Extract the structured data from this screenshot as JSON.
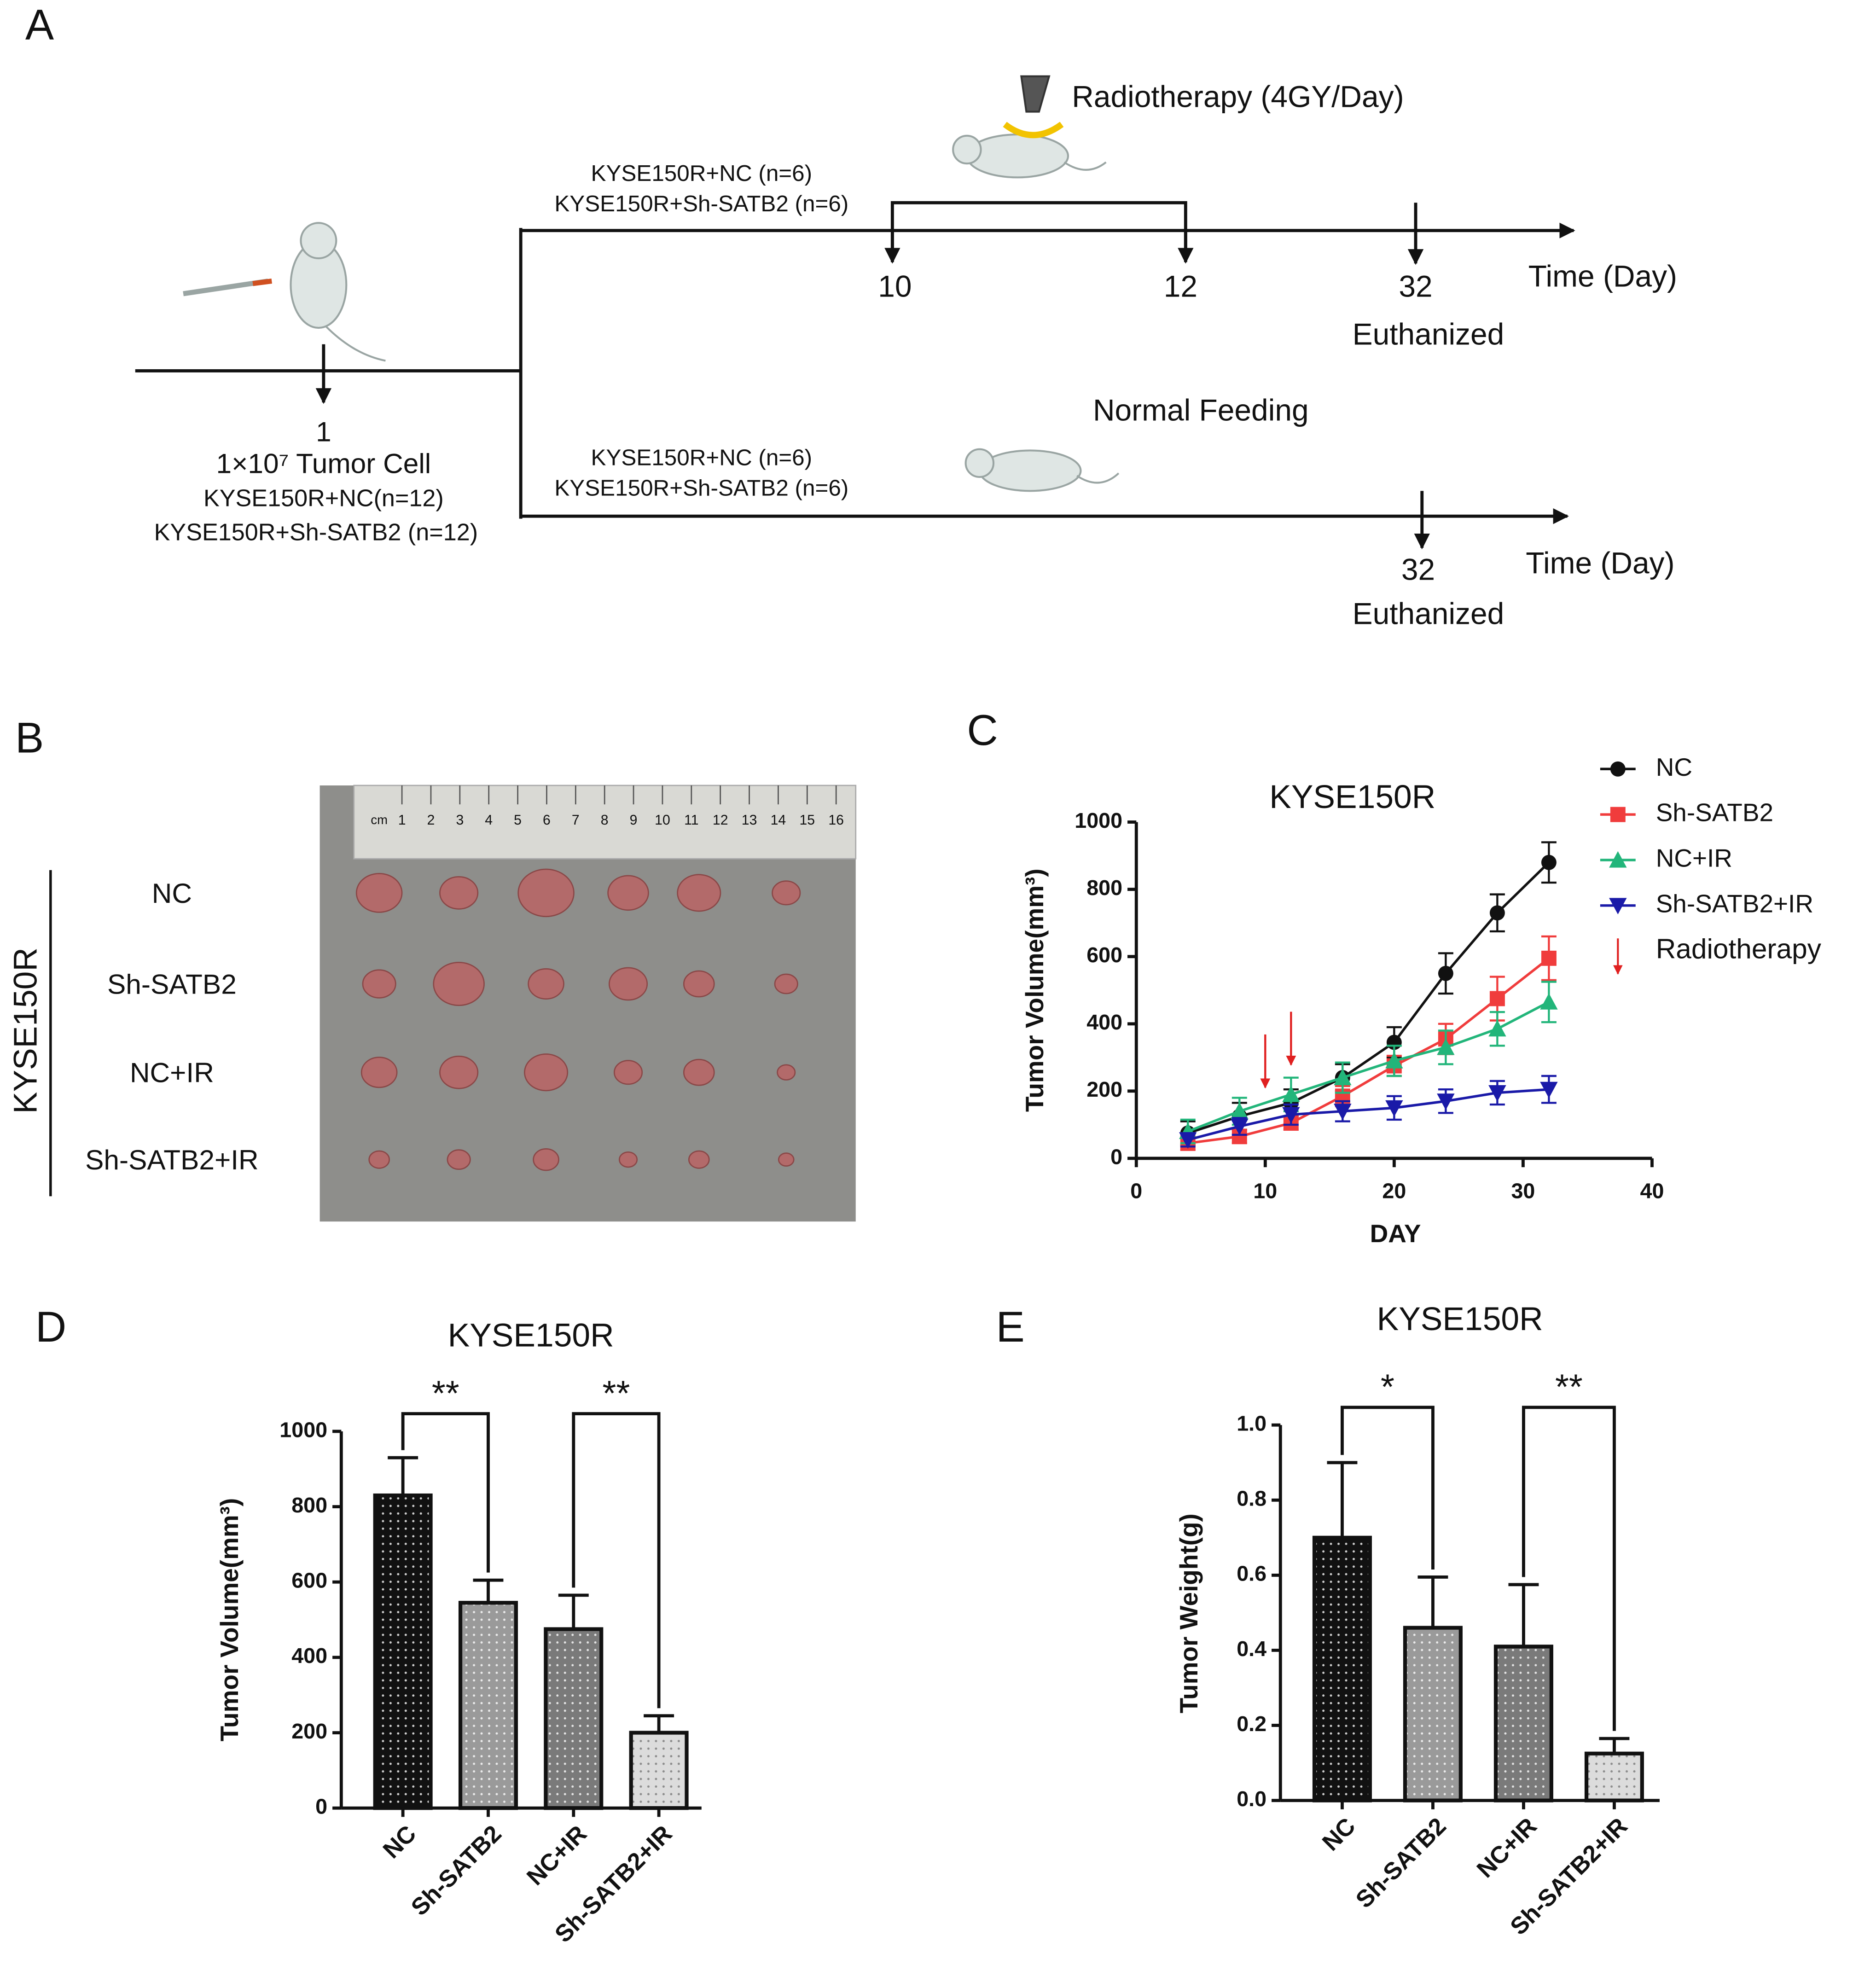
{
  "panel_labels": [
    "A",
    "B",
    "C",
    "D",
    "E"
  ],
  "diagram": {
    "injection": {
      "day": "1",
      "cells": "1×10⁷ Tumor Cell",
      "groups": [
        "KYSE150R+NC(n=12)",
        "KYSE150R+Sh-SATB2 (n=12)"
      ]
    },
    "upper": {
      "treatment": "Radiotherapy (4GY/Day)",
      "groups": [
        "KYSE150R+NC (n=6)",
        "KYSE150R+Sh-SATB2 (n=6)"
      ],
      "days": [
        "10",
        "12",
        "32"
      ],
      "axis": "Time (Day)",
      "end": "Euthanized"
    },
    "lower": {
      "treatment": "Normal Feeding",
      "groups": [
        "KYSE150R+NC (n=6)",
        "KYSE150R+Sh-SATB2 (n=6)"
      ],
      "days": [
        "32"
      ],
      "axis": "Time (Day)",
      "end": "Euthanized"
    }
  },
  "photo": {
    "cell_line": "KYSE150R",
    "rows": [
      "NC",
      "Sh-SATB2",
      "NC+IR",
      "Sh-SATB2+IR"
    ],
    "ruler_unit": "cm",
    "ruler_numbers": [
      "1",
      "2",
      "3",
      "4",
      "5",
      "6",
      "7",
      "8",
      "9",
      "10",
      "11",
      "12",
      "13",
      "14",
      "15",
      "16"
    ]
  },
  "chart_data": [
    {
      "type": "line",
      "title": "KYSE150R",
      "x_label": "DAY",
      "y_label": "Tumor Volume(mm³)",
      "x": [
        4,
        8,
        12,
        16,
        20,
        24,
        28,
        32
      ],
      "series": [
        {
          "name": "NC",
          "color": "#111111",
          "marker": "circle",
          "values": [
            75,
            125,
            165,
            240,
            345,
            550,
            730,
            880
          ],
          "errors": [
            35,
            40,
            40,
            40,
            45,
            60,
            55,
            60
          ]
        },
        {
          "name": "Sh-SATB2",
          "color": "#f03c3c",
          "marker": "square",
          "values": [
            45,
            65,
            105,
            185,
            275,
            355,
            475,
            595
          ],
          "errors": [
            20,
            20,
            20,
            30,
            30,
            45,
            65,
            65
          ]
        },
        {
          "name": "NC+IR",
          "color": "#22b57a",
          "marker": "triangle-up",
          "values": [
            80,
            140,
            190,
            240,
            290,
            330,
            385,
            465
          ],
          "errors": [
            35,
            40,
            50,
            45,
            45,
            50,
            50,
            60
          ]
        },
        {
          "name": "Sh-SATB2+IR",
          "color": "#1a1aa8",
          "marker": "triangle-down",
          "values": [
            55,
            95,
            130,
            140,
            150,
            170,
            195,
            205
          ],
          "errors": [
            20,
            25,
            30,
            30,
            35,
            35,
            35,
            40
          ]
        }
      ],
      "annotation": {
        "name": "Radiotherapy",
        "color": "#e02020",
        "x": [
          10,
          12
        ]
      },
      "xlim": [
        0,
        40
      ],
      "xticks": [
        0,
        10,
        20,
        30,
        40
      ],
      "ylim": [
        0,
        1000
      ],
      "yticks": [
        0,
        200,
        400,
        600,
        800,
        1000
      ],
      "legend": "outside upper right"
    },
    {
      "type": "bar",
      "title": "KYSE150R",
      "y_label": "Tumor Volume(mm³)",
      "categories": [
        "NC",
        "Sh-SATB2",
        "NC+IR",
        "Sh-SATB2+IR"
      ],
      "values": [
        830,
        545,
        475,
        200
      ],
      "errors": [
        100,
        60,
        90,
        45
      ],
      "colors": [
        "#111111",
        "#9a9a9a",
        "#7a7a7a",
        "#dcdcdc"
      ],
      "significance": [
        {
          "pair": [
            "NC",
            "Sh-SATB2"
          ],
          "label": "**"
        },
        {
          "pair": [
            "NC+IR",
            "Sh-SATB2+IR"
          ],
          "label": "**"
        }
      ],
      "ylim": [
        0,
        1000
      ],
      "yticks": [
        0,
        200,
        400,
        600,
        800,
        1000
      ]
    },
    {
      "type": "bar",
      "title": "KYSE150R",
      "y_label": "Tumor Weight(g)",
      "categories": [
        "NC",
        "Sh-SATB2",
        "NC+IR",
        "Sh-SATB2+IR"
      ],
      "values": [
        0.7,
        0.46,
        0.41,
        0.125
      ],
      "errors": [
        0.2,
        0.135,
        0.165,
        0.04
      ],
      "colors": [
        "#111111",
        "#9a9a9a",
        "#7a7a7a",
        "#dcdcdc"
      ],
      "significance": [
        {
          "pair": [
            "NC",
            "Sh-SATB2"
          ],
          "label": "*"
        },
        {
          "pair": [
            "NC+IR",
            "Sh-SATB2+IR"
          ],
          "label": "**"
        }
      ],
      "ylim": [
        0,
        1
      ],
      "yticks": [
        {
          "value": 0,
          "label": "0.0"
        },
        0.2,
        0.4,
        0.6,
        0.8,
        {
          "value": 1,
          "label": "1.0"
        }
      ]
    }
  ]
}
